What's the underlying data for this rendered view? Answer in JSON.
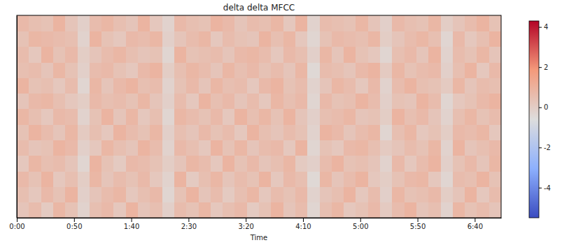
{
  "chart_data": {
    "type": "heatmap",
    "title": "delta delta MFCC",
    "x_label": "Time",
    "xlim": [
      0,
      423
    ],
    "xticks": [
      {
        "value": 0,
        "label": "0:00"
      },
      {
        "value": 50,
        "label": "0:50"
      },
      {
        "value": 100,
        "label": "1:40"
      },
      {
        "value": 150,
        "label": "2:30"
      },
      {
        "value": 200,
        "label": "3:20"
      },
      {
        "value": 250,
        "label": "4:10"
      },
      {
        "value": 300,
        "label": "5:00"
      },
      {
        "value": 350,
        "label": "5:50"
      },
      {
        "value": 400,
        "label": "6:40"
      }
    ],
    "tick_labels": "x",
    "colorbar": {
      "lim": [
        -5.5,
        4.3
      ],
      "ticks": [
        -4,
        -2,
        0,
        2,
        4
      ]
    },
    "cells": [
      [
        0.3,
        0.6,
        0.1,
        0.8,
        0.4,
        -0.2,
        0.5,
        0.7,
        0.2,
        0.9,
        0.3,
        0.5,
        -0.1,
        0.6,
        0.4,
        0.8,
        0.2,
        0.5,
        0.7,
        0.1,
        0.4,
        0.9,
        0.3,
        0.6,
        -0.3,
        0.5,
        0.8,
        0.2,
        0.4,
        0.7,
        0.1,
        0.6,
        0.9,
        0.3,
        0.5,
        -0.2,
        0.8,
        0.4,
        0.6,
        0.3
      ],
      [
        0.5,
        0.2,
        0.7,
        0.4,
        0.9,
        -0.1,
        0.3,
        0.6,
        0.8,
        0.2,
        0.5,
        0.7,
        -0.3,
        0.4,
        0.9,
        0.3,
        0.6,
        0.1,
        0.5,
        0.8,
        0.2,
        0.6,
        0.4,
        0.7,
        -0.2,
        0.3,
        0.5,
        0.9,
        0.2,
        0.6,
        -0.1,
        0.8,
        0.4,
        0.5,
        0.7,
        0.0,
        0.3,
        0.9,
        0.2,
        0.6
      ],
      [
        0.7,
        0.4,
        0.9,
        0.2,
        0.5,
        0.0,
        0.8,
        0.3,
        0.6,
        0.4,
        0.7,
        0.2,
        -0.2,
        0.9,
        0.1,
        0.5,
        0.8,
        0.3,
        0.6,
        0.4,
        0.9,
        0.2,
        0.7,
        0.5,
        -0.4,
        0.8,
        0.3,
        0.6,
        0.9,
        0.2,
        0.0,
        0.4,
        0.7,
        0.8,
        0.2,
        -0.3,
        0.6,
        0.5,
        0.9,
        0.4
      ],
      [
        0.2,
        0.8,
        0.5,
        0.6,
        0.3,
        -0.3,
        0.9,
        0.4,
        0.1,
        0.7,
        0.6,
        0.4,
        0.0,
        0.3,
        0.8,
        0.6,
        0.2,
        0.9,
        0.4,
        0.7,
        0.3,
        0.5,
        0.8,
        0.1,
        -0.1,
        0.6,
        0.9,
        0.4,
        0.5,
        0.3,
        -0.2,
        0.7,
        0.2,
        0.6,
        0.9,
        -0.1,
        0.4,
        0.7,
        0.3,
        0.8
      ],
      [
        0.6,
        0.3,
        0.4,
        0.9,
        0.7,
        -0.1,
        0.2,
        0.8,
        0.5,
        0.3,
        0.9,
        0.6,
        -0.2,
        0.7,
        0.5,
        0.2,
        0.9,
        0.4,
        0.8,
        0.3,
        0.6,
        0.7,
        0.2,
        0.9,
        -0.3,
        0.4,
        0.2,
        0.7,
        0.8,
        0.5,
        0.1,
        0.3,
        0.6,
        0.4,
        0.8,
        -0.2,
        0.9,
        0.3,
        0.5,
        0.7
      ],
      [
        0.4,
        0.9,
        0.6,
        0.3,
        0.8,
        0.1,
        0.5,
        0.2,
        0.9,
        0.6,
        0.4,
        0.8,
        -0.1,
        0.5,
        0.3,
        0.7,
        0.4,
        0.6,
        0.2,
        0.9,
        0.5,
        0.3,
        0.6,
        0.4,
        -0.2,
        0.9,
        0.7,
        0.3,
        0.6,
        0.8,
        -0.3,
        0.5,
        0.8,
        0.2,
        0.4,
        0.0,
        0.7,
        0.6,
        0.8,
        0.2
      ],
      [
        0.8,
        0.5,
        0.2,
        0.7,
        0.6,
        -0.2,
        0.4,
        0.9,
        0.3,
        0.8,
        0.2,
        0.5,
        -0.3,
        0.8,
        0.6,
        0.4,
        0.7,
        0.2,
        0.9,
        0.5,
        0.8,
        0.4,
        0.9,
        0.3,
        -0.1,
        0.5,
        0.6,
        0.8,
        0.3,
        0.4,
        0.0,
        0.9,
        0.5,
        0.7,
        0.3,
        -0.2,
        0.5,
        0.8,
        0.4,
        0.6
      ],
      [
        0.3,
        0.7,
        0.8,
        0.5,
        0.2,
        0.0,
        0.7,
        0.5,
        0.6,
        0.4,
        0.8,
        0.3,
        -0.1,
        0.6,
        0.2,
        0.9,
        0.5,
        0.7,
        0.3,
        0.6,
        0.2,
        0.8,
        0.5,
        0.7,
        -0.3,
        0.7,
        0.4,
        0.5,
        0.9,
        0.6,
        -0.1,
        0.4,
        0.3,
        0.9,
        0.6,
        -0.3,
        0.2,
        0.4,
        0.7,
        0.9
      ],
      [
        0.9,
        0.4,
        0.5,
        0.2,
        0.6,
        -0.3,
        0.8,
        0.3,
        0.7,
        0.9,
        0.5,
        0.6,
        -0.2,
        0.4,
        0.7,
        0.3,
        0.8,
        0.5,
        0.6,
        0.2,
        0.7,
        0.9,
        0.4,
        0.6,
        -0.2,
        0.3,
        0.8,
        0.6,
        0.2,
        0.7,
        -0.2,
        0.6,
        0.9,
        0.5,
        0.4,
        0.1,
        0.8,
        0.3,
        0.6,
        0.5
      ],
      [
        0.5,
        0.6,
        0.3,
        0.8,
        0.4,
        -0.1,
        0.6,
        0.7,
        0.4,
        0.2,
        0.7,
        0.9,
        0.0,
        0.5,
        0.8,
        0.6,
        0.3,
        0.8,
        0.5,
        0.7,
        0.4,
        0.6,
        0.3,
        0.8,
        -0.4,
        0.6,
        0.5,
        0.3,
        0.7,
        0.9,
        0.1,
        0.8,
        0.4,
        0.6,
        0.7,
        -0.1,
        0.5,
        0.9,
        0.2,
        0.7
      ],
      [
        0.6,
        0.2,
        0.9,
        0.4,
        0.7,
        0.0,
        0.3,
        0.6,
        0.8,
        0.5,
        0.3,
        0.4,
        -0.3,
        0.9,
        0.4,
        0.5,
        0.6,
        0.3,
        0.7,
        0.8,
        0.6,
        0.2,
        0.7,
        0.5,
        -0.1,
        0.8,
        0.3,
        0.9,
        0.4,
        0.2,
        -0.3,
        0.5,
        0.7,
        0.3,
        0.9,
        -0.2,
        0.6,
        0.4,
        0.8,
        0.3
      ],
      [
        0.4,
        0.8,
        0.7,
        0.6,
        0.5,
        -0.2,
        0.9,
        0.4,
        0.2,
        0.7,
        0.6,
        0.8,
        -0.1,
        0.3,
        0.6,
        0.8,
        0.2,
        0.6,
        0.4,
        0.3,
        0.9,
        0.5,
        0.8,
        0.2,
        -0.3,
        0.4,
        0.7,
        0.6,
        0.5,
        0.8,
        0.0,
        0.3,
        0.6,
        0.8,
        0.5,
        -0.3,
        0.7,
        0.2,
        0.5,
        0.9
      ],
      [
        0.7,
        0.5,
        0.4,
        0.9,
        0.3,
        -0.1,
        0.6,
        0.8,
        0.5,
        0.3,
        0.9,
        0.2,
        -0.2,
        0.7,
        0.5,
        0.4,
        0.9,
        0.7,
        0.3,
        0.6,
        0.5,
        0.8,
        0.2,
        0.9,
        -0.2,
        0.6,
        0.5,
        0.4,
        0.8,
        0.3,
        -0.1,
        0.7,
        0.5,
        0.4,
        0.8,
        0.0,
        0.3,
        0.6,
        0.9,
        0.4
      ]
    ]
  }
}
